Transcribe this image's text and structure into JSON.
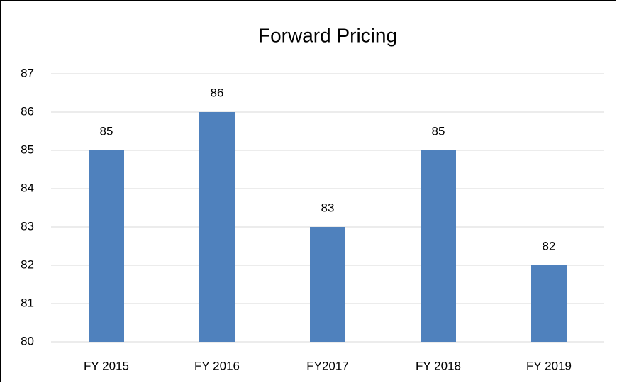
{
  "chart_data": {
    "type": "bar",
    "title": "Forward Pricing",
    "categories": [
      "FY 2015",
      "FY 2016",
      "FY2017",
      "FY 2018",
      "FY 2019"
    ],
    "values": [
      85,
      86,
      83,
      85,
      82
    ],
    "color": "#4f81bd",
    "ylim": [
      80,
      87
    ],
    "yticks": [
      80,
      81,
      82,
      83,
      84,
      85,
      86,
      87
    ],
    "grid": true,
    "data_labels": true
  }
}
